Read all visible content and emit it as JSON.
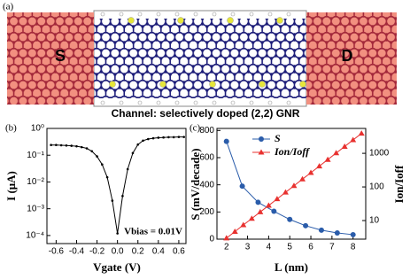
{
  "figure_a": {
    "panel_label": "(a)",
    "source": "S",
    "drain": "D",
    "caption": "Channel: selectively doped (2,2) GNR"
  },
  "chart_data": [
    {
      "type": "line",
      "panel_label": "(b)",
      "xlabel": "Vgate (V)",
      "ylabel": "I (μA)",
      "annotation": "Vbias = 0.01V",
      "x": [
        -0.65,
        -0.6,
        -0.55,
        -0.5,
        -0.45,
        -0.4,
        -0.35,
        -0.3,
        -0.25,
        -0.2,
        -0.15,
        -0.1,
        -0.05,
        0,
        0.05,
        0.1,
        0.15,
        0.2,
        0.25,
        0.3,
        0.35,
        0.4,
        0.45,
        0.5,
        0.55,
        0.6,
        0.65
      ],
      "series": [
        {
          "color": "#000000",
          "marker": "dot",
          "values": [
            0.24,
            0.24,
            0.235,
            0.23,
            0.225,
            0.215,
            0.2,
            0.18,
            0.14,
            0.09,
            0.045,
            0.015,
            0.002,
            0.00012,
            0.003,
            0.03,
            0.12,
            0.25,
            0.35,
            0.4,
            0.43,
            0.45,
            0.46,
            0.47,
            0.47,
            0.48,
            0.48
          ]
        }
      ],
      "xlim": [
        -0.69,
        0.67
      ],
      "ylim": [
        5e-05,
        1
      ],
      "yscale": "log",
      "xticks": [
        -0.6,
        -0.4,
        -0.2,
        {
          "value": 0,
          "label": "0.0"
        },
        0.2,
        0.4,
        0.6
      ],
      "yticks": [
        {
          "value": 0.0001,
          "label": "10⁻⁴"
        },
        {
          "value": 0.001,
          "label": "10⁻³"
        },
        {
          "value": 0.01,
          "label": "10⁻²"
        },
        {
          "value": 0.1,
          "label": "10⁻¹"
        },
        {
          "value": 1,
          "label": "10⁰"
        }
      ]
    },
    {
      "type": "line",
      "panel_label": "(c)",
      "xlabel": "L (nm)",
      "ylabel": "S (mV/decade)",
      "y2label": "Ion/Ioff",
      "legend": "upper-center",
      "series": [
        {
          "name": "S",
          "color": "#2a5caa",
          "marker": "circle",
          "x": [
            2,
            2.75,
            3.5,
            4.25,
            5,
            5.75,
            6.5,
            7.25,
            8
          ],
          "values": [
            720,
            390,
            271,
            205,
            145,
            99,
            66,
            46,
            33
          ]
        },
        {
          "name": "Ion/Ioff",
          "color": "#e8312f",
          "marker": "triangle",
          "axis": "y2",
          "x": [
            2,
            2.4,
            2.8,
            3.2,
            3.6,
            4,
            4.4,
            4.8,
            5.2,
            5.6,
            6,
            6.4,
            6.8,
            7.2,
            7.6,
            8,
            8.4
          ],
          "values": [
            3,
            4.7,
            7.4,
            11.5,
            18,
            28,
            44,
            69,
            108,
            170,
            265,
            415,
            650,
            1020,
            1590,
            2500,
            3900
          ]
        }
      ],
      "xlim": [
        1.55,
        8.6
      ],
      "ylim": [
        0,
        815
      ],
      "y2lim": [
        2.8,
        5500
      ],
      "y2scale": "log",
      "xticks": [
        2,
        3,
        4,
        5,
        6,
        7,
        8
      ],
      "yticks": [
        0,
        200,
        400,
        600,
        800
      ],
      "y2ticks": [
        10,
        100,
        1000
      ]
    }
  ]
}
